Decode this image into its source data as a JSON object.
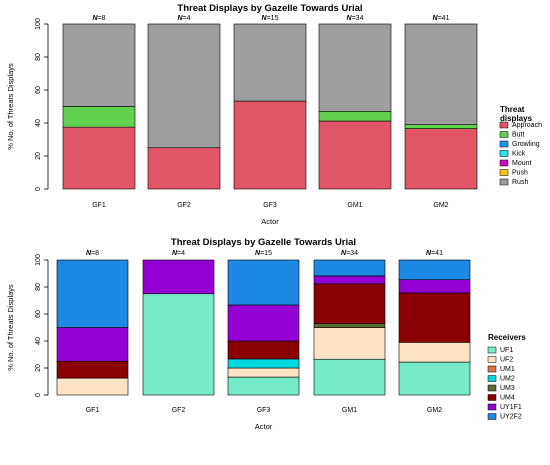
{
  "chart_data": [
    {
      "type": "bar",
      "stacked": true,
      "title": "Threat Displays by Gazelle Towards Urial",
      "xlabel": "Actor",
      "ylabel": "% No. of Threats Displays",
      "ylim": [
        0,
        100
      ],
      "yticks": [
        "0",
        "20",
        "40",
        "60",
        "80",
        "100"
      ],
      "categories": [
        "GF1",
        "GF2",
        "GF3",
        "GM1",
        "GM2"
      ],
      "n_labels": [
        "N=8",
        "N=4",
        "N=15",
        "N=34",
        "N=41"
      ],
      "legend_title": [
        "Threat",
        "displays"
      ],
      "legend_position": "right",
      "grid": false,
      "series": [
        {
          "name": "Approach",
          "color": "#E05568",
          "values": [
            37.5,
            25,
            53.3,
            41.2,
            36.6
          ]
        },
        {
          "name": "Butt",
          "color": "#61D04F",
          "values": [
            12.5,
            0,
            0,
            5.9,
            2.4
          ]
        },
        {
          "name": "Growling",
          "color": "#2297E6",
          "values": [
            0,
            0,
            0,
            0,
            0
          ]
        },
        {
          "name": "Kick",
          "color": "#28E2E5",
          "values": [
            0,
            0,
            0,
            0,
            0
          ]
        },
        {
          "name": "Mount",
          "color": "#CD0BBC",
          "values": [
            0,
            0,
            0,
            0,
            0
          ]
        },
        {
          "name": "Push",
          "color": "#F5C710",
          "values": [
            0,
            0,
            0,
            0,
            0
          ]
        },
        {
          "name": "Rush",
          "color": "#9E9E9E",
          "values": [
            50,
            75,
            46.7,
            52.9,
            61
          ]
        }
      ]
    },
    {
      "type": "bar",
      "stacked": true,
      "title": "Threat Displays by Gazelle Towards Urial",
      "xlabel": "Actor",
      "ylabel": "% No. of Threats Displays",
      "ylim": [
        0,
        100
      ],
      "yticks": [
        "0",
        "20",
        "40",
        "60",
        "80",
        "100"
      ],
      "categories": [
        "GF1",
        "GF2",
        "GF3",
        "GM1",
        "GM2"
      ],
      "n_labels": [
        "N=8",
        "N=4",
        "N=15",
        "N=34",
        "N=41"
      ],
      "legend_title": [
        "Receivers"
      ],
      "legend_position": "right",
      "grid": false,
      "series": [
        {
          "name": "UF1",
          "color": "#77EBC7",
          "values": [
            0,
            75,
            13.3,
            26.5,
            24.4
          ]
        },
        {
          "name": "UF2",
          "color": "#FFE4C4",
          "values": [
            12.5,
            0,
            6.7,
            23.5,
            14.6
          ]
        },
        {
          "name": "UM1",
          "color": "#E07040",
          "values": [
            0,
            0,
            0,
            0,
            0
          ]
        },
        {
          "name": "UM2",
          "color": "#00D8E0",
          "values": [
            0,
            0,
            6.7,
            0,
            0
          ]
        },
        {
          "name": "UM3",
          "color": "#5A6B30",
          "values": [
            0,
            0,
            0,
            2.9,
            0
          ]
        },
        {
          "name": "UM4",
          "color": "#8B0000",
          "values": [
            12.5,
            0,
            13.3,
            29.4,
            36.6
          ]
        },
        {
          "name": "UY1F1",
          "color": "#9400D3",
          "values": [
            25,
            25,
            26.7,
            5.9,
            9.8
          ]
        },
        {
          "name": "UY2F2",
          "color": "#1E88E5",
          "values": [
            50,
            0,
            33.3,
            11.8,
            14.6
          ]
        }
      ]
    }
  ]
}
